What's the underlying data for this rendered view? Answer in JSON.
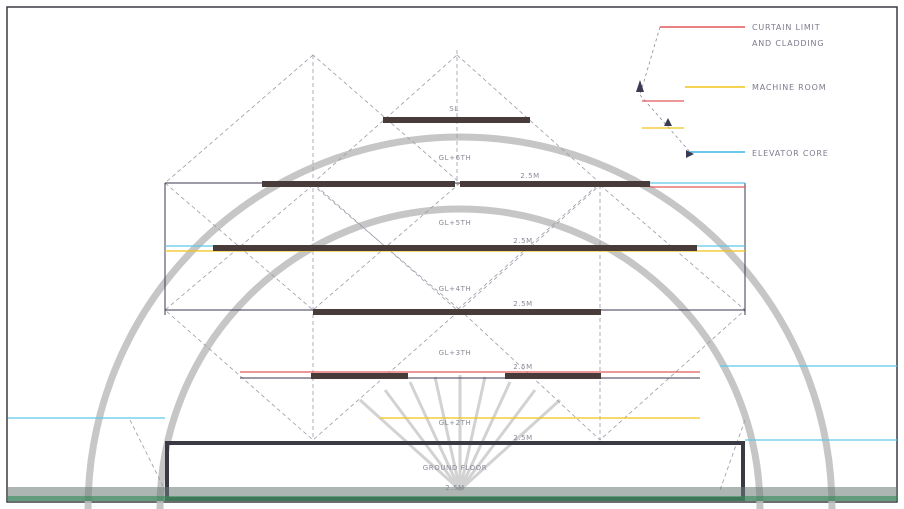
{
  "legend": {
    "items": [
      {
        "label_line1": "CURTAIN LIMIT",
        "label_line2": "AND CLADDING",
        "color": "#d9534f"
      },
      {
        "label": "MACHINE ROOM",
        "color": "#f0c419"
      },
      {
        "label": "ELEVATOR CORE",
        "color": "#3cb4e6"
      }
    ]
  },
  "floors": {
    "top": "SL",
    "level_1": "GL+6TH",
    "level_2": "GL+5TH",
    "level_3": "GL+4TH",
    "level_4": "GL+3TH",
    "level_5": "GL+2TH",
    "ground": "GROUND FLOOR"
  },
  "dimension_tags": [
    "2.5M",
    "2.5M",
    "2.5M",
    "2.5M",
    "2.5M",
    "2.5M"
  ],
  "colors": {
    "slab": "#4a3b3b",
    "frame": "#3a3a52",
    "guide": "#9a9aa8",
    "cyan": "#5fc7e8",
    "red": "#e25a5a",
    "yellow": "#f0c419",
    "arc": "#bdbdbd"
  }
}
